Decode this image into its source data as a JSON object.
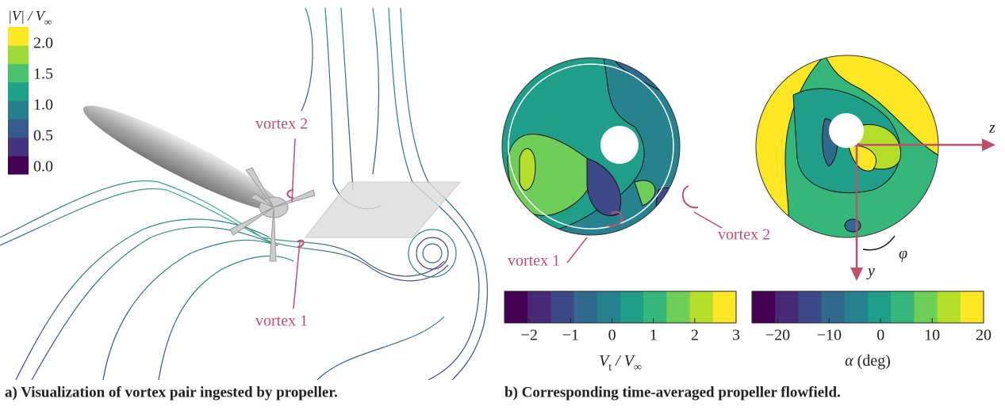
{
  "legend": {
    "title": [
      "|V| / V",
      "∞"
    ],
    "ticks": [
      "2.0",
      "1.5",
      "1.0",
      "0.5",
      "0.0"
    ],
    "colors": [
      "#440154",
      "#46337e",
      "#365c8d",
      "#277f8e",
      "#1fa187",
      "#4ac16d",
      "#a0da39",
      "#fde725"
    ]
  },
  "annotations": {
    "left_vortex_2": "vortex 2",
    "left_vortex_1": "vortex 1",
    "right_vortex_1": "vortex 1",
    "right_vortex_2": "vortex 2",
    "axis_z": "z",
    "axis_y": "y",
    "axis_phi": "φ"
  },
  "colorbars": [
    {
      "label": [
        "V",
        "t",
        " / V",
        "∞"
      ],
      "range": [
        -2.6,
        3
      ],
      "ticks": [
        {
          "value": -2,
          "label": "−2"
        },
        {
          "value": -1,
          "label": "−1"
        },
        0,
        1,
        2,
        3
      ],
      "colors": [
        "#440154",
        "#482878",
        "#3e4989",
        "#31688e",
        "#26828e",
        "#1f9e89",
        "#35b779",
        "#6ece58",
        "#b5de2b",
        "#fde725"
      ]
    },
    {
      "label": [
        "α",
        " (deg)"
      ],
      "range": [
        -25,
        20
      ],
      "ticks": [
        {
          "value": -20,
          "label": "−20"
        },
        {
          "value": -10,
          "label": "−10"
        },
        0,
        10,
        20
      ],
      "colors": [
        "#440154",
        "#482878",
        "#3e4989",
        "#31688e",
        "#26828e",
        "#1f9e89",
        "#35b779",
        "#6ece58",
        "#b5de2b",
        "#fde725"
      ]
    }
  ],
  "captions": [
    "a) Visualization of vortex pair ingested by propeller.",
    "b) Corresponding time-averaged propeller flowfield."
  ]
}
